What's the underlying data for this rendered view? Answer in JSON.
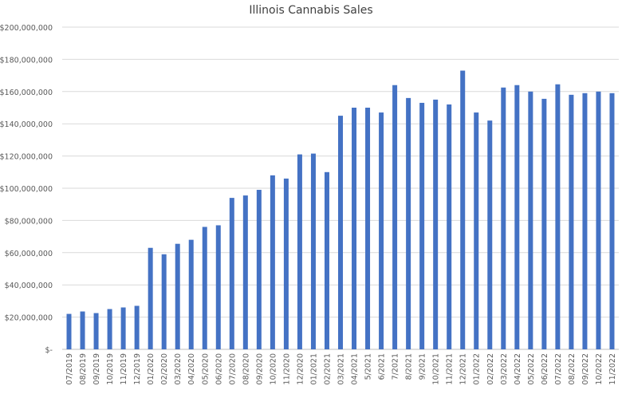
{
  "chart_data": {
    "type": "bar",
    "title": "Illinois Cannabis Sales",
    "xlabel": "",
    "ylabel": "",
    "ylim": [
      0,
      200000000
    ],
    "yticks": [
      0,
      20000000,
      40000000,
      60000000,
      80000000,
      100000000,
      120000000,
      140000000,
      160000000,
      180000000,
      200000000
    ],
    "ytick_labels": [
      "$-",
      "$20,000,000",
      "$40,000,000",
      "$60,000,000",
      "$80,000,000",
      "$100,000,000",
      "$120,000,000",
      "$140,000,000",
      "$160,000,000",
      "$180,000,000",
      "$200,000,000"
    ],
    "grid": true,
    "legend": "none",
    "bar_color": "#4472c4",
    "categories": [
      "07/2019",
      "08/2019",
      "09/2019",
      "10/2019",
      "11/2019",
      "12/2019",
      "01/2020",
      "02/2020",
      "03/2020",
      "04/2020",
      "05/2020",
      "06/2020",
      "07/2020",
      "08/2020",
      "09/2020",
      "10/2020",
      "11/2020",
      "12/2020",
      "01/2021",
      "02/2021",
      "03/2021",
      "04/2021",
      "5/2021",
      "6/2021",
      "7/2021",
      "8/2021",
      "9/2021",
      "10/2021",
      "11/2021",
      "12/2021",
      "01/2022",
      "02/2022",
      "03/2022",
      "04/2022",
      "05/2022",
      "06/2022",
      "07/2022",
      "08/2022",
      "09/2022",
      "10/2022",
      "11/2022"
    ],
    "values": [
      22000000,
      23500000,
      22500000,
      25000000,
      26000000,
      27000000,
      63000000,
      59000000,
      65500000,
      68000000,
      76000000,
      77000000,
      94000000,
      95500000,
      99000000,
      108000000,
      106000000,
      121000000,
      121500000,
      110000000,
      145000000,
      150000000,
      150000000,
      147000000,
      164000000,
      156000000,
      153000000,
      155000000,
      152000000,
      173000000,
      147000000,
      142000000,
      162500000,
      164000000,
      160000000,
      155500000,
      164500000,
      158000000,
      159000000,
      160000000,
      159000000
    ]
  }
}
